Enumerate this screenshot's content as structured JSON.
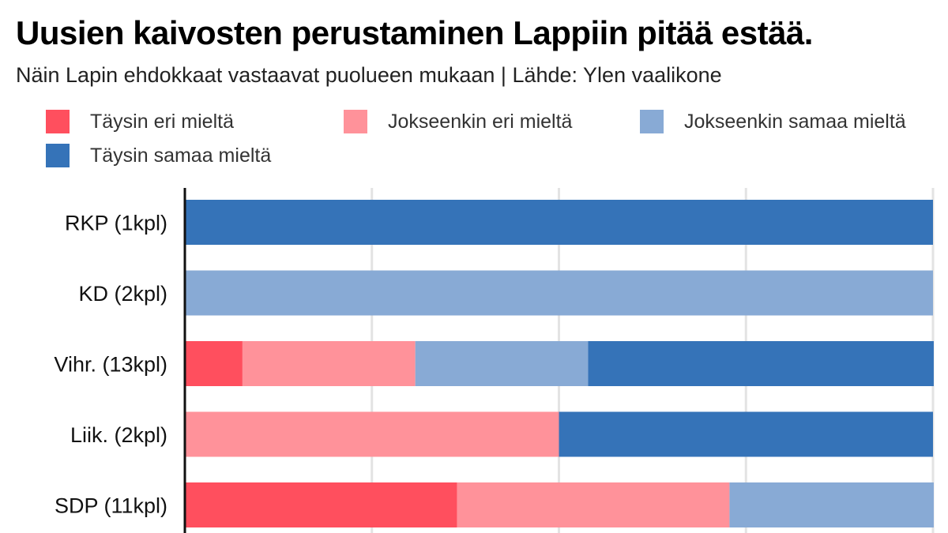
{
  "title": "Uusien kaivosten perustaminen Lappiin pitää estää.",
  "subtitle": "Näin Lapin ehdokkaat vastaavat puolueen mukaan | Lähde: Ylen vaalikone",
  "chart_data": {
    "type": "bar",
    "orientation": "horizontal",
    "stacked": true,
    "title": "Uusien kaivosten perustaminen Lappiin pitää estää.",
    "subtitle": "Näin Lapin ehdokkaat vastaavat puolueen mukaan | Lähde: Ylen vaalikone",
    "categories": [
      "RKP (1kpl)",
      "KD (2kpl)",
      "Vihr. (13kpl)",
      "Liik. (2kpl)",
      "SDP (11kpl)"
    ],
    "xlim": [
      0,
      100
    ],
    "grid": true,
    "legend_position": "top",
    "series": [
      {
        "name": "Täysin eri mieltä",
        "color": "#ff4f5e",
        "values": [
          0,
          0,
          7.7,
          0,
          36.4
        ]
      },
      {
        "name": "Jokseenkin eri mieltä",
        "color": "#ff929a",
        "values": [
          0,
          0,
          23.1,
          50,
          36.4
        ]
      },
      {
        "name": "Jokseenkin samaa mieltä",
        "color": "#88aad5",
        "values": [
          0,
          100,
          23.1,
          0,
          27.3
        ]
      },
      {
        "name": "Täysin samaa mieltä",
        "color": "#3573b8",
        "values": [
          100,
          0,
          46.2,
          50,
          0
        ]
      }
    ]
  }
}
